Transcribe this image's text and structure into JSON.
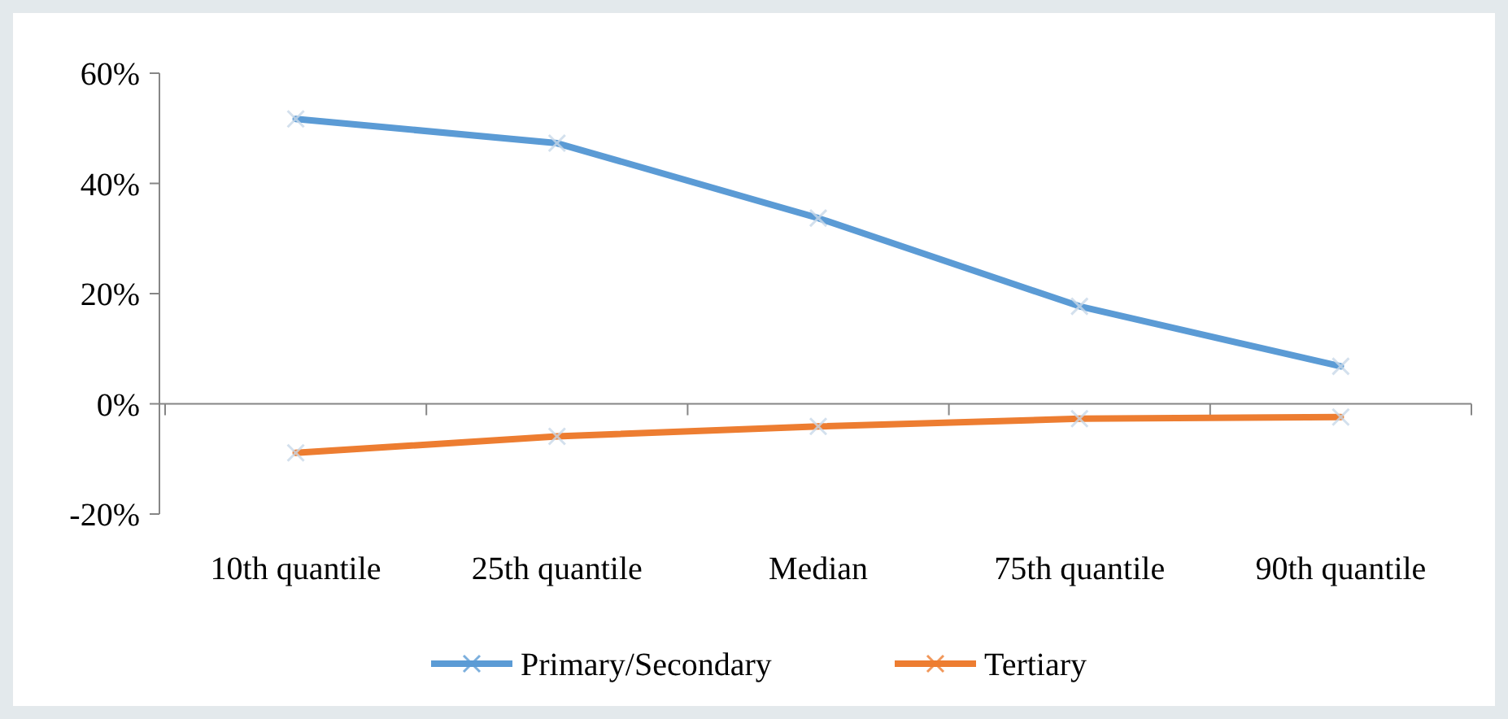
{
  "chart_data": {
    "type": "line",
    "categories": [
      "10th quantile",
      "25th quantile",
      "Median",
      "75th quantile",
      "90th quantile"
    ],
    "series": [
      {
        "name": "Primary/Secondary",
        "color": "#5b9bd5",
        "values": [
          51.7,
          47.3,
          33.7,
          17.7,
          6.8
        ]
      },
      {
        "name": "Tertiary",
        "color": "#ed7d31",
        "values": [
          -8.9,
          -5.9,
          -4.1,
          -2.7,
          -2.4
        ]
      }
    ],
    "ylim": [
      -20,
      60
    ],
    "yticks": [
      {
        "value": -20,
        "label": "-20%"
      },
      {
        "value": 0,
        "label": "0%"
      },
      {
        "value": 20,
        "label": "20%"
      },
      {
        "value": 40,
        "label": "40%"
      },
      {
        "value": 60,
        "label": "60%"
      }
    ],
    "legend": "bottom",
    "marker": "cross",
    "line_style": "solid"
  }
}
